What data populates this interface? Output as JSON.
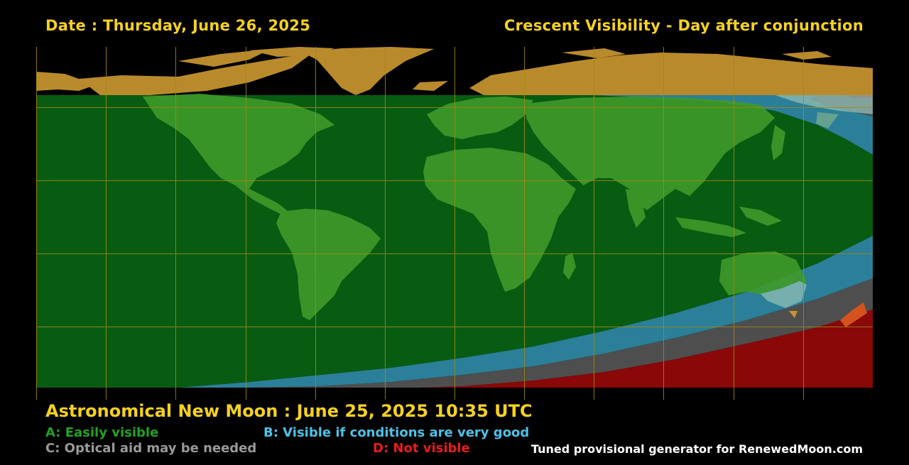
{
  "header": {
    "date": "Date : Thursday, June 26, 2025",
    "title": "Crescent Visibility - Day after conjunction"
  },
  "new_moon": "Astronomical New Moon : June 25, 2025 10:35 UTC",
  "legend": {
    "a": {
      "label": "A: Easily visible",
      "color": "#1fa324"
    },
    "b": {
      "label": "B: Visible if conditions are very good",
      "color": "#4ec2e6"
    },
    "c": {
      "label": "C: Optical aid may be needed",
      "color": "#9a9a9a"
    },
    "d": {
      "label": "D: Not visible",
      "color": "#e81c1c"
    }
  },
  "credit": "Tuned provisional generator for RenewedMoon.com",
  "zone_colors": {
    "a": "#075c12",
    "b": "#2f98b8",
    "c": "#5a5a5a",
    "d": "#8a0808",
    "grid": "#a08a10",
    "land": "#c9952e"
  }
}
